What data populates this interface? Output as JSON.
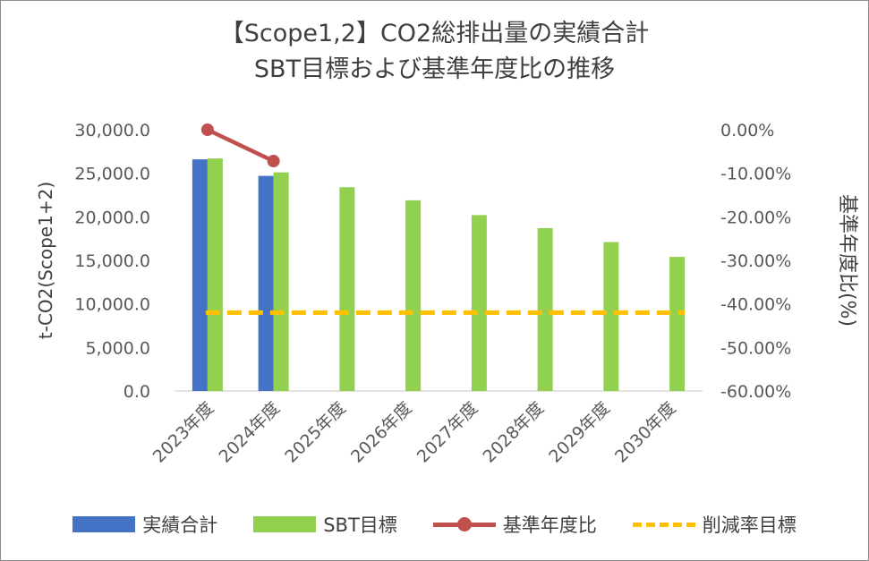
{
  "chart_data": {
    "type": "bar",
    "title_line1": "【Scope1,2】CO2総排出量の実績合計",
    "title_line2": "SBT目標および基準年度比の推移",
    "ylabel": "t-CO2(Scope1+2)",
    "y2label": "基準年度比(%)",
    "ylim": [
      0,
      30000
    ],
    "y2lim": [
      -60,
      0
    ],
    "yticks": [
      "30,000.0",
      "25,000.0",
      "20,000.0",
      "15,000.0",
      "10,000.0",
      "5,000.0",
      "0.0"
    ],
    "y2ticks": [
      "0.00%",
      "-10.00%",
      "-20.00%",
      "-30.00%",
      "-40.00%",
      "-50.00%",
      "-60.00%"
    ],
    "categories": [
      "2023年度",
      "2024年度",
      "2025年度",
      "2026年度",
      "2027年度",
      "2028年度",
      "2029年度",
      "2030年度"
    ],
    "series": [
      {
        "name": "実績合計",
        "kind": "bar",
        "color": "#4472C4",
        "values": [
          26600,
          24700,
          null,
          null,
          null,
          null,
          null,
          null
        ]
      },
      {
        "name": "SBT目標",
        "kind": "bar",
        "color": "#92D050",
        "values": [
          26700,
          25100,
          23400,
          21900,
          20200,
          18700,
          17100,
          15400
        ]
      },
      {
        "name": "基準年度比",
        "kind": "line",
        "axis": "secondary",
        "color": "#C0504D",
        "values": [
          0,
          -7.2,
          null,
          null,
          null,
          null,
          null,
          null
        ]
      },
      {
        "name": "削減率目標",
        "kind": "dashed",
        "axis": "secondary",
        "color": "#FFC000",
        "values": [
          -42,
          -42,
          -42,
          -42,
          -42,
          -42,
          -42,
          -42
        ]
      }
    ],
    "legend": "bottom",
    "grid": false
  }
}
